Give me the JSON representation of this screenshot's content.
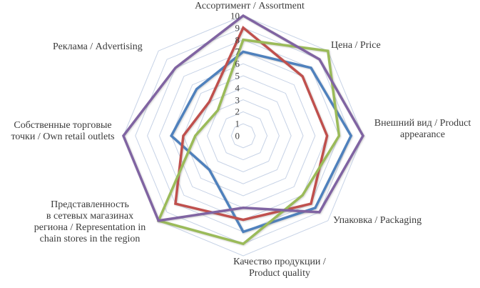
{
  "chart_data": {
    "type": "radar",
    "title": "",
    "legend": "none",
    "scale": {
      "min": 0,
      "max": 10,
      "step": 1,
      "tick_labels": [
        "10",
        "9",
        "8",
        "7",
        "6",
        "5",
        "4",
        "3",
        "2",
        "1",
        "0"
      ],
      "tick_color": "#404040"
    },
    "grid": {
      "rings": 10,
      "shape": "octagon",
      "color": "#c6d2e6",
      "spokes_drawn": false
    },
    "categories": [
      {
        "id": "assortment",
        "label": "Ассортимент / Assortment"
      },
      {
        "id": "price",
        "label": "Цена / Price"
      },
      {
        "id": "appearance",
        "label": "Внешний вид / Product\nappearance"
      },
      {
        "id": "packaging",
        "label": "Упаковка / Packaging"
      },
      {
        "id": "quality",
        "label": "Качество продукции /\nProduct quality"
      },
      {
        "id": "representation",
        "label": "Представленность\nв сетевых магазинах\nрегиона / Representation in\nchain stores in the region"
      },
      {
        "id": "own-outlets",
        "label": "Собственные торговые\nточки / Own retail outlets"
      },
      {
        "id": "advertising",
        "label": "Реклама / Advertising"
      }
    ],
    "category_order": [
      "assortment",
      "price",
      "appearance",
      "packaging",
      "quality",
      "representation",
      "own-outlets",
      "advertising"
    ],
    "series": [
      {
        "name": "blue-series",
        "color": "#4F81BD",
        "stroke_width": 3.5,
        "values": [
          7,
          8,
          9,
          8.5,
          8,
          4,
          6,
          5.5
        ]
      },
      {
        "name": "red-series",
        "color": "#C0504D",
        "stroke_width": 3.5,
        "values": [
          9,
          7,
          7,
          8,
          7,
          8,
          5,
          4
        ]
      },
      {
        "name": "green-series",
        "color": "#9BBB59",
        "stroke_width": 3.5,
        "values": [
          8,
          10,
          8,
          7,
          9,
          10,
          4,
          3
        ]
      },
      {
        "name": "purple-series",
        "color": "#8064A2",
        "stroke_width": 3.5,
        "values": [
          10,
          9,
          10,
          9,
          6,
          10,
          10,
          8
        ]
      }
    ]
  }
}
